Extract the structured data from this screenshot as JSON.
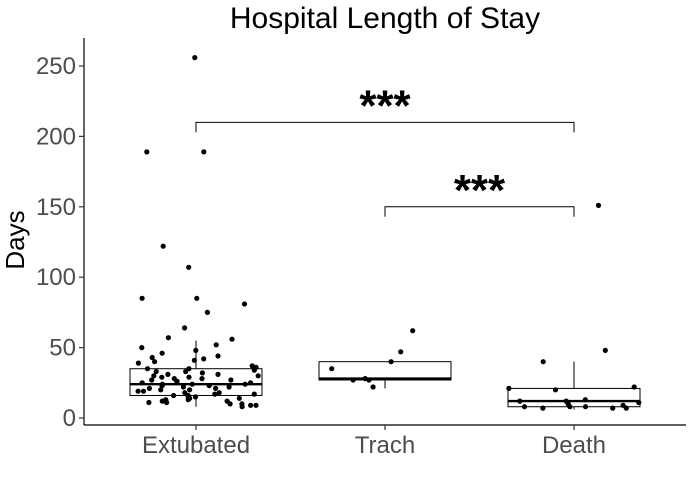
{
  "chart_data": {
    "type": "box",
    "title": "Hospital Length of Stay",
    "xlabel": "",
    "ylabel": "Days",
    "ylim": [
      0,
      265
    ],
    "yticks": [
      0,
      50,
      100,
      150,
      200,
      250
    ],
    "categories": [
      "Extubated",
      "Trach",
      "Death"
    ],
    "grid": false,
    "legend": "none",
    "boxes": [
      {
        "category": "Extubated",
        "q1": 16,
        "median": 24,
        "q3": 35,
        "whisker_low": 8,
        "whisker_high": 55
      },
      {
        "category": "Trach",
        "q1": 27,
        "median": 28,
        "q3": 40,
        "whisker_low": 21,
        "whisker_high": 40
      },
      {
        "category": "Death",
        "q1": 8,
        "median": 12,
        "q3": 21,
        "whisker_low": 6,
        "whisker_high": 40
      }
    ],
    "points": [
      {
        "category": "Extubated",
        "values": [
          256,
          189,
          189,
          122,
          107,
          85,
          85,
          81,
          75,
          64,
          57,
          56,
          52,
          50,
          48,
          46,
          44,
          43,
          42,
          41,
          40,
          39,
          37,
          36,
          35,
          35,
          34,
          33,
          33,
          32,
          31,
          31,
          30,
          30,
          29,
          29,
          28,
          28,
          27,
          27,
          26,
          26,
          25,
          25,
          24,
          24,
          24,
          23,
          23,
          22,
          22,
          21,
          21,
          20,
          20,
          19,
          19,
          18,
          18,
          17,
          17,
          16,
          16,
          15,
          15,
          14,
          14,
          13,
          13,
          12,
          12,
          11,
          11,
          10,
          10,
          9,
          9,
          8
        ]
      },
      {
        "category": "Trach",
        "values": [
          62,
          47,
          40,
          35,
          28,
          27,
          27,
          22
        ]
      },
      {
        "category": "Death",
        "values": [
          151,
          48,
          40,
          22,
          21,
          20,
          13,
          12,
          12,
          11,
          10,
          9,
          8,
          8,
          8,
          7,
          7,
          7
        ]
      }
    ],
    "significance": [
      {
        "from": "Extubated",
        "to": "Death",
        "y": 210,
        "label": "***"
      },
      {
        "from": "Trach",
        "to": "Death",
        "y": 150,
        "label": "***"
      }
    ]
  }
}
